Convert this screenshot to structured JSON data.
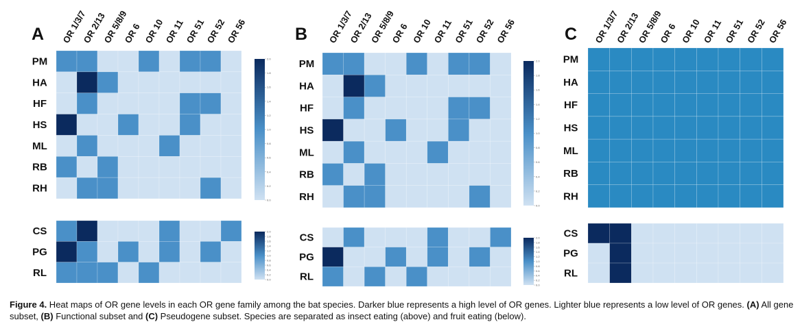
{
  "chart_data": [
    {
      "type": "heatmap",
      "panel": "A",
      "columns": [
        "OR 1/3/7",
        "OR 2/13",
        "OR 5/8/9",
        "OR 6",
        "OR 10",
        "OR 11",
        "OR 51",
        "OR 52",
        "OR 56"
      ],
      "blocks": [
        {
          "rows": [
            "PM",
            "HA",
            "HF",
            "HS",
            "ML",
            "RB",
            "RH"
          ],
          "values": [
            [
              1,
              1,
              0,
              0,
              1,
              0,
              1,
              1,
              0
            ],
            [
              0,
              2,
              1,
              0,
              0,
              0,
              0,
              0,
              0
            ],
            [
              0,
              1,
              0,
              0,
              0,
              0,
              1,
              1,
              0
            ],
            [
              2,
              0,
              0,
              1,
              0,
              0,
              1,
              0,
              0
            ],
            [
              0,
              1,
              0,
              0,
              0,
              1,
              0,
              0,
              0
            ],
            [
              1,
              0,
              1,
              0,
              0,
              0,
              0,
              0,
              0
            ],
            [
              0,
              1,
              1,
              0,
              0,
              0,
              0,
              1,
              0
            ]
          ],
          "colorbar": {
            "min": 0,
            "max": 2,
            "ticks": [
              "2.0",
              "1.8",
              "1.6",
              "1.4",
              "1.2",
              "1.0",
              "0.8",
              "0.6",
              "0.4",
              "0.2",
              "0.0"
            ]
          }
        },
        {
          "rows": [
            "CS",
            "PG",
            "RL"
          ],
          "values": [
            [
              1,
              2,
              0,
              0,
              0,
              1,
              0,
              0,
              1
            ],
            [
              2,
              1,
              0,
              1,
              0,
              1,
              0,
              1,
              0
            ],
            [
              1,
              1,
              1,
              0,
              1,
              0,
              0,
              0,
              0
            ]
          ],
          "colorbar": {
            "min": 0,
            "max": 2,
            "ticks": [
              "2.0",
              "1.8",
              "1.6",
              "1.4",
              "1.2",
              "1.0",
              "0.8",
              "0.6",
              "0.4",
              "0.2",
              "0.0"
            ]
          }
        }
      ]
    },
    {
      "type": "heatmap",
      "panel": "B",
      "columns": [
        "OR 1/3/7",
        "OR 2/13",
        "OR 5/8/9",
        "OR 6",
        "OR 10",
        "OR 11",
        "OR 51",
        "OR 52",
        "OR 56"
      ],
      "blocks": [
        {
          "rows": [
            "PM",
            "HA",
            "HF",
            "HS",
            "ML",
            "RB",
            "RH"
          ],
          "values": [
            [
              1,
              1,
              0,
              0,
              1,
              0,
              1,
              1,
              0
            ],
            [
              0,
              2,
              1,
              0,
              0,
              0,
              0,
              0,
              0
            ],
            [
              0,
              1,
              0,
              0,
              0,
              0,
              1,
              1,
              0
            ],
            [
              2,
              0,
              0,
              1,
              0,
              0,
              1,
              0,
              0
            ],
            [
              0,
              1,
              0,
              0,
              0,
              1,
              0,
              0,
              0
            ],
            [
              1,
              0,
              1,
              0,
              0,
              0,
              0,
              0,
              0
            ],
            [
              0,
              1,
              1,
              0,
              0,
              0,
              0,
              1,
              0
            ]
          ],
          "colorbar": {
            "min": 0,
            "max": 2,
            "ticks": [
              "2.0",
              "1.8",
              "1.6",
              "1.4",
              "1.2",
              "1.0",
              "0.8",
              "0.6",
              "0.4",
              "0.2",
              "0.0"
            ]
          }
        },
        {
          "rows": [
            "CS",
            "PG",
            "RL"
          ],
          "values": [
            [
              0,
              1,
              0,
              0,
              0,
              1,
              0,
              0,
              1
            ],
            [
              2,
              0,
              0,
              1,
              0,
              1,
              0,
              1,
              0
            ],
            [
              1,
              0,
              1,
              0,
              1,
              0,
              0,
              0,
              0
            ]
          ],
          "colorbar": {
            "min": 0,
            "max": 2,
            "ticks": [
              "2.0",
              "1.8",
              "1.6",
              "1.4",
              "1.2",
              "1.0",
              "0.8",
              "0.6",
              "0.4",
              "0.2",
              "0.0"
            ]
          }
        }
      ]
    },
    {
      "type": "heatmap",
      "panel": "C",
      "columns": [
        "OR 1/3/7",
        "OR 2/13",
        "OR 5/8/9",
        "OR 6",
        "OR 10",
        "OR 11",
        "OR 51",
        "OR 52",
        "OR 56"
      ],
      "blocks": [
        {
          "rows": [
            "PM",
            "HA",
            "HF",
            "HS",
            "ML",
            "RB",
            "RH"
          ],
          "values": [
            [
              1,
              1,
              1,
              1,
              1,
              1,
              1,
              1,
              1
            ],
            [
              1,
              1,
              1,
              1,
              1,
              1,
              1,
              1,
              1
            ],
            [
              1,
              1,
              1,
              1,
              1,
              1,
              1,
              1,
              1
            ],
            [
              1,
              1,
              1,
              1,
              1,
              1,
              1,
              1,
              1
            ],
            [
              1,
              1,
              1,
              1,
              1,
              1,
              1,
              1,
              1
            ],
            [
              1,
              1,
              1,
              1,
              1,
              1,
              1,
              1,
              1
            ],
            [
              1,
              1,
              1,
              1,
              1,
              1,
              1,
              1,
              1
            ]
          ]
        },
        {
          "rows": [
            "CS",
            "PG",
            "RL"
          ],
          "values": [
            [
              2,
              2,
              0,
              0,
              0,
              0,
              0,
              0,
              0
            ],
            [
              0,
              2,
              0,
              0,
              0,
              0,
              0,
              0,
              0
            ],
            [
              0,
              2,
              0,
              0,
              0,
              0,
              0,
              0,
              0
            ]
          ]
        }
      ]
    }
  ],
  "colors": {
    "low": "#cfe1f2",
    "mid": "#4a90c8",
    "high": "#0b2a5e",
    "uniform": "#2a8ac2"
  },
  "caption": {
    "label": "Figure 4.",
    "parts": [
      {
        "t": " Heat maps of OR gene levels in each OR gene family among the bat species. Darker blue represents a high level of OR genes. Lighter blue represents a low level of OR genes. "
      },
      {
        "t": "(A)",
        "b": true
      },
      {
        "t": " All gene subset, "
      },
      {
        "t": "(B)",
        "b": true
      },
      {
        "t": " Functional subset and "
      },
      {
        "t": "(C)",
        "b": true
      },
      {
        "t": " Pseudogene subset. Species are separated as insect eating (above) and fruit eating (below)."
      }
    ]
  }
}
